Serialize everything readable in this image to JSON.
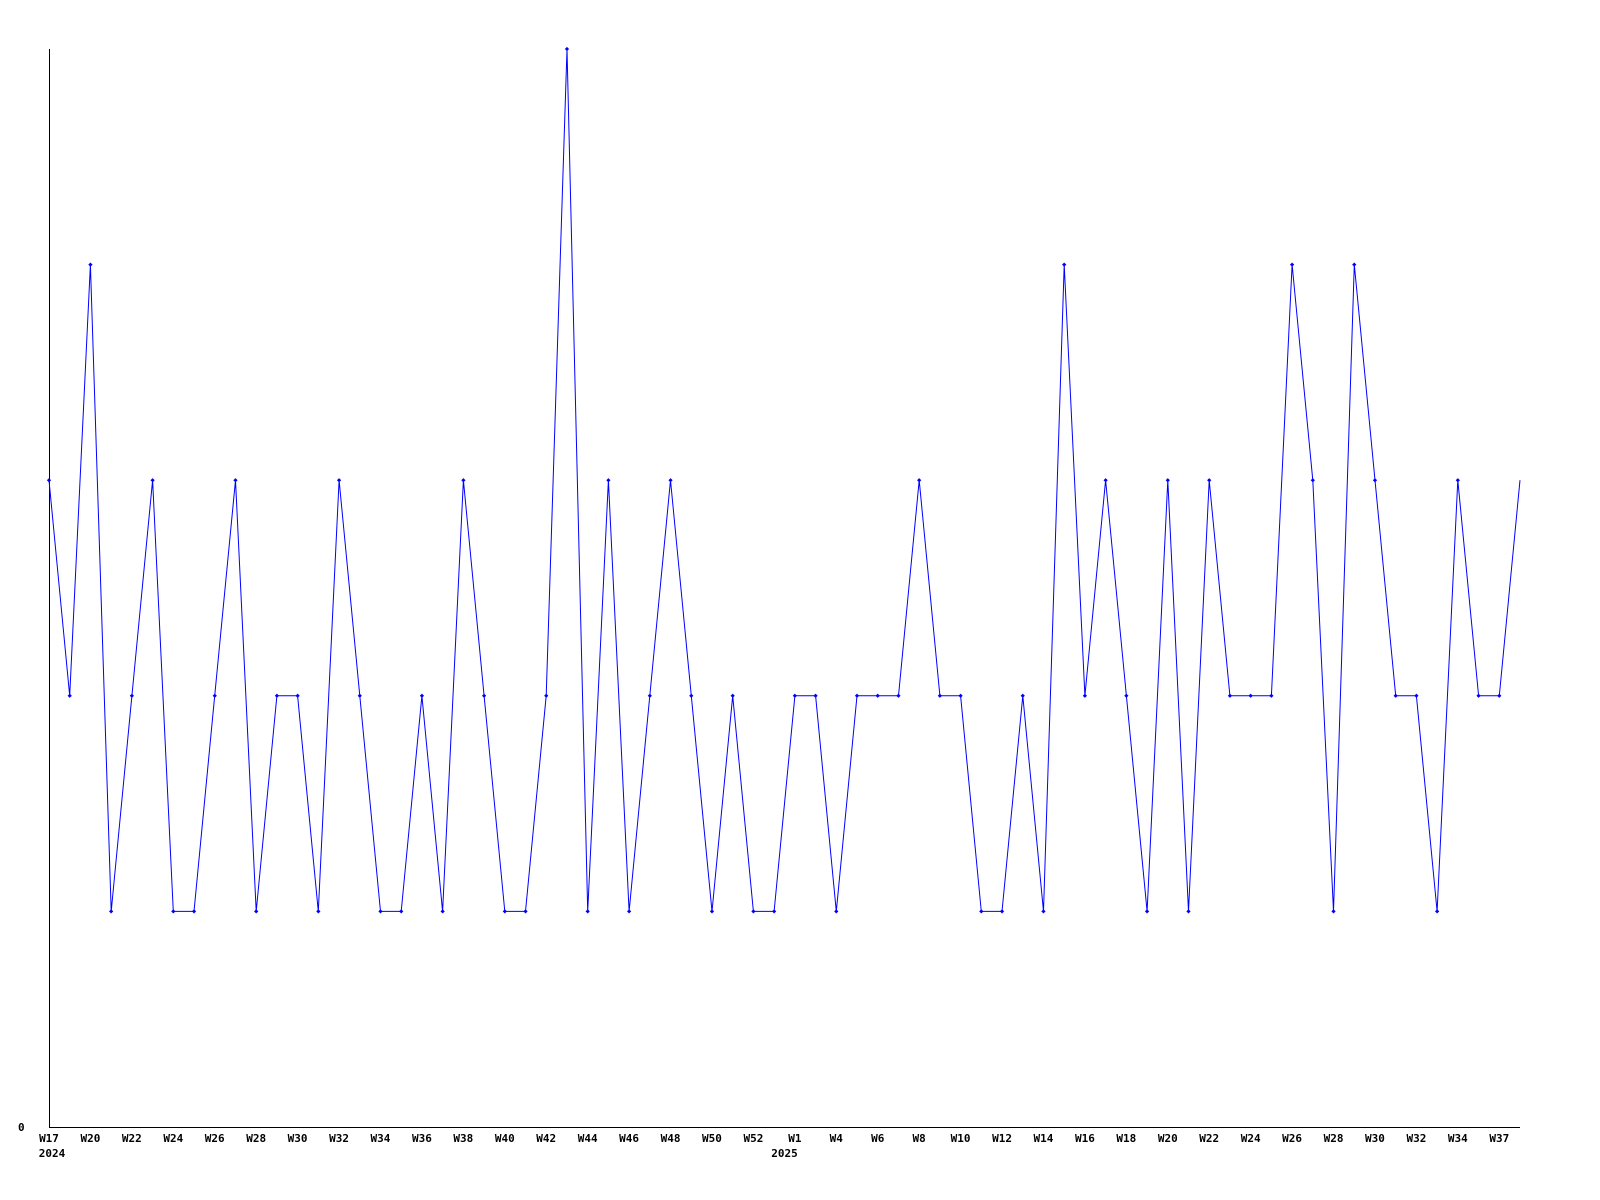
{
  "chart_data": {
    "type": "line",
    "title": "",
    "xlabel": "",
    "ylabel": "",
    "y_tick_labels": [
      "0"
    ],
    "ylim": [
      0,
      5
    ],
    "grid": false,
    "line_color": "#0000ff",
    "axis_color": "#000000",
    "x_tick_labels": [
      {
        "index": 0,
        "label": "W17"
      },
      {
        "index": 2,
        "label": "W20"
      },
      {
        "index": 4,
        "label": "W22"
      },
      {
        "index": 6,
        "label": "W24"
      },
      {
        "index": 8,
        "label": "W26"
      },
      {
        "index": 10,
        "label": "W28"
      },
      {
        "index": 12,
        "label": "W30"
      },
      {
        "index": 14,
        "label": "W32"
      },
      {
        "index": 16,
        "label": "W34"
      },
      {
        "index": 18,
        "label": "W36"
      },
      {
        "index": 20,
        "label": "W38"
      },
      {
        "index": 22,
        "label": "W40"
      },
      {
        "index": 24,
        "label": "W42"
      },
      {
        "index": 26,
        "label": "W44"
      },
      {
        "index": 28,
        "label": "W46"
      },
      {
        "index": 30,
        "label": "W48"
      },
      {
        "index": 32,
        "label": "W50"
      },
      {
        "index": 34,
        "label": "W52"
      },
      {
        "index": 36,
        "label": "W1"
      },
      {
        "index": 38,
        "label": "W4"
      },
      {
        "index": 40,
        "label": "W6"
      },
      {
        "index": 42,
        "label": "W8"
      },
      {
        "index": 44,
        "label": "W10"
      },
      {
        "index": 46,
        "label": "W12"
      },
      {
        "index": 48,
        "label": "W14"
      },
      {
        "index": 50,
        "label": "W16"
      },
      {
        "index": 52,
        "label": "W18"
      },
      {
        "index": 54,
        "label": "W20"
      },
      {
        "index": 56,
        "label": "W22"
      },
      {
        "index": 58,
        "label": "W24"
      },
      {
        "index": 60,
        "label": "W26"
      },
      {
        "index": 62,
        "label": "W28"
      },
      {
        "index": 64,
        "label": "W30"
      },
      {
        "index": 66,
        "label": "W32"
      },
      {
        "index": 68,
        "label": "W34"
      },
      {
        "index": 70,
        "label": "W37"
      }
    ],
    "year_labels": [
      {
        "index": 0,
        "label": "2024"
      },
      {
        "index": 35.5,
        "label": "2025"
      }
    ],
    "values": [
      3,
      2,
      4,
      1,
      2,
      3,
      1,
      1,
      2,
      3,
      1,
      2,
      2,
      1,
      3,
      2,
      1,
      1,
      2,
      1,
      3,
      2,
      1,
      1,
      2,
      5,
      1,
      3,
      1,
      2,
      3,
      2,
      1,
      2,
      1,
      1,
      2,
      2,
      1,
      2,
      2,
      2,
      3,
      2,
      2,
      1,
      1,
      2,
      1,
      4,
      2,
      3,
      2,
      1,
      3,
      1,
      3,
      2,
      2,
      2,
      4,
      3,
      1,
      4,
      3,
      2,
      2,
      1,
      3,
      2,
      2,
      3
    ]
  }
}
